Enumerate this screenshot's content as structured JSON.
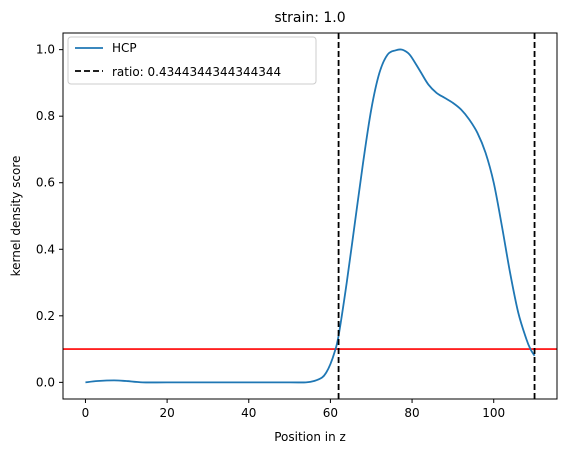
{
  "chart_data": {
    "type": "line",
    "title": "strain: 1.0",
    "xlabel": "Position in z",
    "ylabel": "kernel density score",
    "xlim": [
      -5.5,
      115.5
    ],
    "ylim": [
      -0.05,
      1.05
    ],
    "xticks": [
      0,
      20,
      40,
      60,
      80,
      100
    ],
    "yticks": [
      0.0,
      0.2,
      0.4,
      0.6,
      0.8,
      1.0
    ],
    "xtick_labels": [
      "0",
      "20",
      "40",
      "60",
      "80",
      "100"
    ],
    "ytick_labels": [
      "0.0",
      "0.2",
      "0.4",
      "0.6",
      "0.8",
      "1.0"
    ],
    "grid": false,
    "legend_position": "top-left",
    "series": [
      {
        "name": "HCP",
        "color": "#1f77b4",
        "x": [
          0,
          3,
          7,
          10,
          14,
          20,
          30,
          40,
          50,
          54,
          56,
          58,
          59,
          60,
          61,
          62,
          64,
          66,
          68,
          70,
          72,
          74,
          76,
          77.5,
          79,
          80,
          82,
          84,
          86,
          88,
          90,
          92,
          94,
          96,
          98,
          100,
          102,
          104,
          106,
          108,
          109,
          110
        ],
        "y": [
          0.0,
          0.004,
          0.006,
          0.004,
          0.0,
          0.0,
          0.0,
          0.0,
          0.0,
          0.0,
          0.004,
          0.015,
          0.03,
          0.055,
          0.09,
          0.14,
          0.3,
          0.48,
          0.66,
          0.82,
          0.93,
          0.985,
          0.998,
          1.0,
          0.99,
          0.975,
          0.935,
          0.895,
          0.87,
          0.855,
          0.84,
          0.82,
          0.79,
          0.75,
          0.69,
          0.6,
          0.47,
          0.33,
          0.21,
          0.13,
          0.1,
          0.08
        ]
      }
    ],
    "vlines": [
      {
        "name": "ratio: 0.4344344344344344",
        "x": [
          62,
          110
        ],
        "color": "#000000",
        "style": "dashed"
      }
    ],
    "hline": {
      "y": 0.1,
      "color": "#ff0000"
    }
  }
}
